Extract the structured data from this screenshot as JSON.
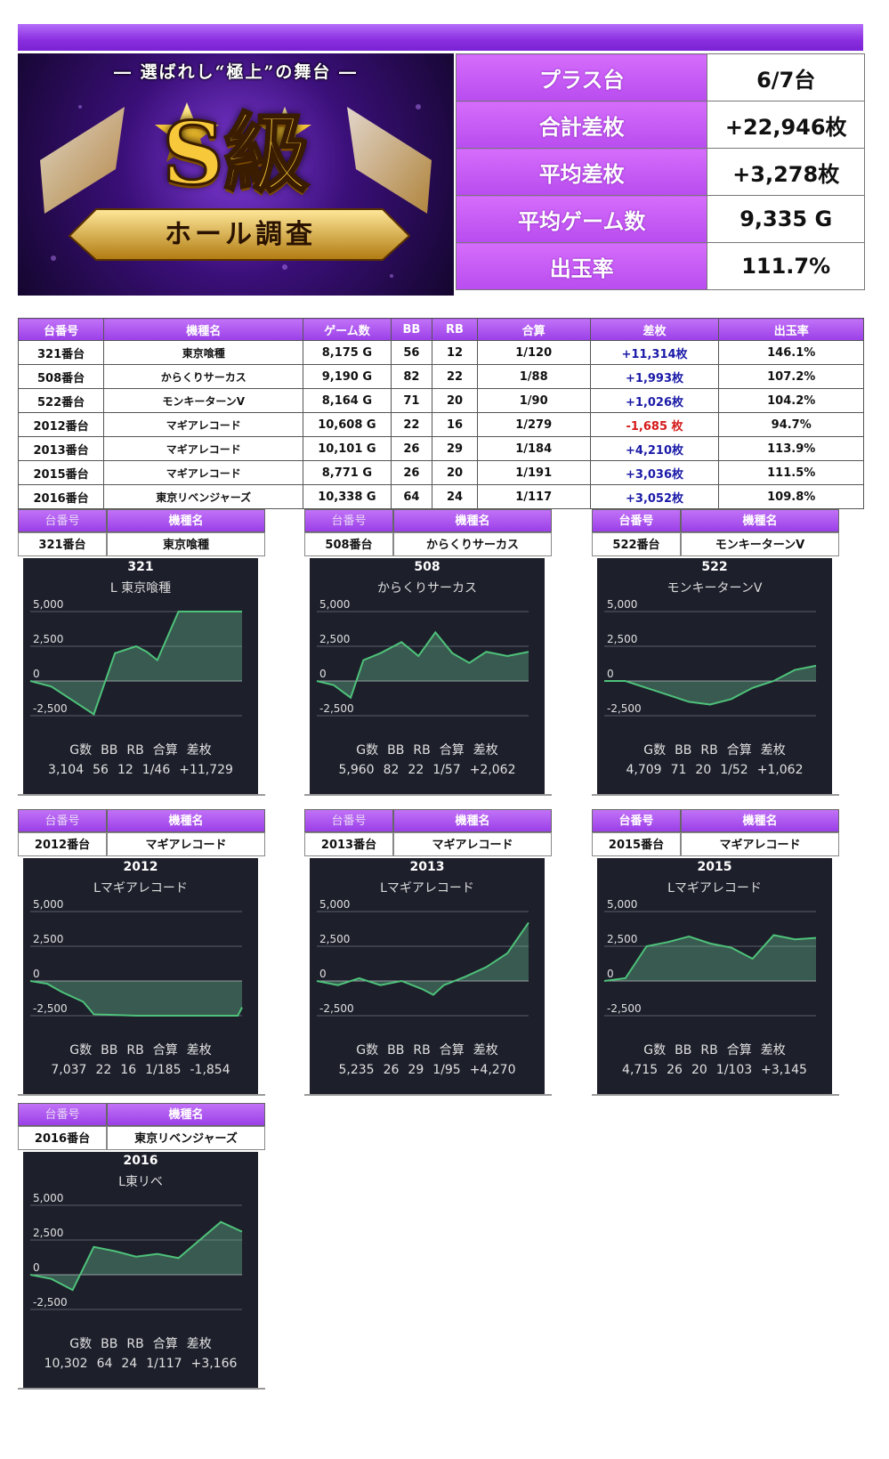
{
  "banner": {
    "tagline": "― 選ばれし“極上”の舞台 ―",
    "big": "S級",
    "ribbon": "ホール調査"
  },
  "summary": [
    {
      "label": "プラス台",
      "value": "6/7台"
    },
    {
      "label": "合計差枚",
      "value": "+22,946枚"
    },
    {
      "label": "平均差枚",
      "value": "+3,278枚"
    },
    {
      "label": "平均ゲーム数",
      "value": "9,335 G"
    },
    {
      "label": "出玉率",
      "value": "111.7%"
    }
  ],
  "table": {
    "headers": [
      "台番号",
      "機種名",
      "ゲーム数",
      "BB",
      "RB",
      "合算",
      "差枚",
      "出玉率"
    ],
    "rows": [
      {
        "no": "321番台",
        "machine": "東京喰種",
        "games": "8,175 G",
        "bb": "56",
        "rb": "12",
        "total": "1/120",
        "diff": "+11,314枚",
        "sign": "pos",
        "rate": "146.1%"
      },
      {
        "no": "508番台",
        "machine": "からくりサーカス",
        "games": "9,190 G",
        "bb": "82",
        "rb": "22",
        "total": "1/88",
        "diff": "+1,993枚",
        "sign": "pos",
        "rate": "107.2%"
      },
      {
        "no": "522番台",
        "machine": "モンキーターンV",
        "games": "8,164 G",
        "bb": "71",
        "rb": "20",
        "total": "1/90",
        "diff": "+1,026枚",
        "sign": "pos",
        "rate": "104.2%"
      },
      {
        "no": "2012番台",
        "machine": "マギアレコード",
        "games": "10,608 G",
        "bb": "22",
        "rb": "16",
        "total": "1/279",
        "diff": "-1,685 枚",
        "sign": "neg",
        "rate": "94.7%"
      },
      {
        "no": "2013番台",
        "machine": "マギアレコード",
        "games": "10,101 G",
        "bb": "26",
        "rb": "29",
        "total": "1/184",
        "diff": "+4,210枚",
        "sign": "pos",
        "rate": "113.9%"
      },
      {
        "no": "2015番台",
        "machine": "マギアレコード",
        "games": "8,771 G",
        "bb": "26",
        "rb": "20",
        "total": "1/191",
        "diff": "+3,036枚",
        "sign": "pos",
        "rate": "111.5%"
      },
      {
        "no": "2016番台",
        "machine": "東京リベンジャーズ",
        "games": "10,338 G",
        "bb": "64",
        "rb": "24",
        "total": "1/117",
        "diff": "+3,052枚",
        "sign": "pos",
        "rate": "109.8%"
      }
    ]
  },
  "card_headers": {
    "no": "台番号",
    "machine": "機種名"
  },
  "stat_labels": [
    "G数",
    "BB",
    "RB",
    "合算",
    "差枚"
  ],
  "axis_ticks": [
    "5,000",
    "2,500",
    "0",
    "-2,500"
  ],
  "cards": [
    {
      "no": "321番台",
      "machine": "東京喰種",
      "chart_no": "321",
      "chart_name": "L 東京喰種",
      "g": "3,104",
      "bb": "56",
      "rb": "12",
      "total": "1/46",
      "diff": "+11,729",
      "header_dim": true
    },
    {
      "no": "508番台",
      "machine": "からくりサーカス",
      "chart_no": "508",
      "chart_name": "からくりサーカス",
      "g": "5,960",
      "bb": "82",
      "rb": "22",
      "total": "1/57",
      "diff": "+2,062",
      "header_dim": true
    },
    {
      "no": "522番台",
      "machine": "モンキーターンV",
      "chart_no": "522",
      "chart_name": "モンキーターンV",
      "g": "4,709",
      "bb": "71",
      "rb": "20",
      "total": "1/52",
      "diff": "+1,062",
      "header_dim": false
    },
    {
      "no": "2012番台",
      "machine": "マギアレコード",
      "chart_no": "2012",
      "chart_name": "Lマギアレコード",
      "g": "7,037",
      "bb": "22",
      "rb": "16",
      "total": "1/185",
      "diff": "-1,854",
      "header_dim": true
    },
    {
      "no": "2013番台",
      "machine": "マギアレコード",
      "chart_no": "2013",
      "chart_name": "Lマギアレコード",
      "g": "5,235",
      "bb": "26",
      "rb": "29",
      "total": "1/95",
      "diff": "+4,270",
      "header_dim": true
    },
    {
      "no": "2015番台",
      "machine": "マギアレコード",
      "chart_no": "2015",
      "chart_name": "Lマギアレコード",
      "g": "4,715",
      "bb": "26",
      "rb": "20",
      "total": "1/103",
      "diff": "+3,145",
      "header_dim": false
    },
    {
      "no": "2016番台",
      "machine": "東京リベンジャーズ",
      "chart_no": "2016",
      "chart_name": "L東リベ",
      "g": "10,302",
      "bb": "64",
      "rb": "24",
      "total": "1/117",
      "diff": "+3,166",
      "header_dim": true
    }
  ],
  "chart_data": [
    {
      "type": "area",
      "title": "321",
      "subtitle": "L 東京喰種",
      "ylim": [
        -3000,
        5000
      ],
      "yticks": [
        5000,
        2500,
        0,
        -2500
      ],
      "x": [
        0,
        0.1,
        0.2,
        0.3,
        0.4,
        0.5,
        0.55,
        0.6,
        0.7,
        1.0
      ],
      "values": [
        0,
        -400,
        -1400,
        -2400,
        2000,
        2500,
        2100,
        1500,
        5000,
        5000
      ]
    },
    {
      "type": "area",
      "title": "508",
      "subtitle": "からくりサーカス",
      "ylim": [
        -3000,
        5000
      ],
      "yticks": [
        5000,
        2500,
        0,
        -2500
      ],
      "x": [
        0,
        0.08,
        0.16,
        0.22,
        0.3,
        0.4,
        0.48,
        0.56,
        0.64,
        0.72,
        0.8,
        0.9,
        1.0
      ],
      "values": [
        0,
        -300,
        -1200,
        1500,
        2000,
        2800,
        1800,
        3500,
        2000,
        1300,
        2100,
        1800,
        2100
      ]
    },
    {
      "type": "area",
      "title": "522",
      "subtitle": "モンキーターンV",
      "ylim": [
        -3000,
        5000
      ],
      "yticks": [
        5000,
        2500,
        0,
        -2500
      ],
      "x": [
        0,
        0.1,
        0.2,
        0.3,
        0.4,
        0.5,
        0.6,
        0.7,
        0.8,
        0.9,
        1.0
      ],
      "values": [
        0,
        0,
        -500,
        -1000,
        -1500,
        -1700,
        -1300,
        -500,
        0,
        800,
        1100
      ]
    },
    {
      "type": "area",
      "title": "2012",
      "subtitle": "Lマギアレコード",
      "ylim": [
        -3000,
        5000
      ],
      "yticks": [
        5000,
        2500,
        0,
        -2500
      ],
      "x": [
        0,
        0.08,
        0.15,
        0.25,
        0.3,
        0.5,
        0.7,
        0.9,
        0.98,
        1.0
      ],
      "values": [
        0,
        -200,
        -800,
        -1500,
        -2400,
        -2500,
        -2500,
        -2500,
        -2500,
        -1900
      ]
    },
    {
      "type": "area",
      "title": "2013",
      "subtitle": "Lマギアレコード",
      "ylim": [
        -3000,
        5000
      ],
      "yticks": [
        5000,
        2500,
        0,
        -2500
      ],
      "x": [
        0,
        0.1,
        0.2,
        0.3,
        0.4,
        0.5,
        0.55,
        0.6,
        0.7,
        0.8,
        0.9,
        1.0
      ],
      "values": [
        0,
        -300,
        200,
        -300,
        0,
        -600,
        -1000,
        -300,
        300,
        1000,
        2000,
        4200
      ]
    },
    {
      "type": "area",
      "title": "2015",
      "subtitle": "Lマギアレコード",
      "ylim": [
        -3000,
        5000
      ],
      "yticks": [
        5000,
        2500,
        0,
        -2500
      ],
      "x": [
        0,
        0.1,
        0.2,
        0.3,
        0.4,
        0.5,
        0.6,
        0.7,
        0.8,
        0.9,
        1.0
      ],
      "values": [
        0,
        200,
        2500,
        2800,
        3200,
        2700,
        2400,
        1600,
        3300,
        3000,
        3100
      ]
    },
    {
      "type": "area",
      "title": "2016",
      "subtitle": "L東リベ",
      "ylim": [
        -3000,
        5000
      ],
      "yticks": [
        5000,
        2500,
        0,
        -2500
      ],
      "x": [
        0,
        0.1,
        0.2,
        0.3,
        0.4,
        0.5,
        0.6,
        0.7,
        0.8,
        0.9,
        1.0
      ],
      "values": [
        0,
        -300,
        -1100,
        2000,
        1700,
        1300,
        1500,
        1200,
        2500,
        3800,
        3100
      ]
    }
  ]
}
